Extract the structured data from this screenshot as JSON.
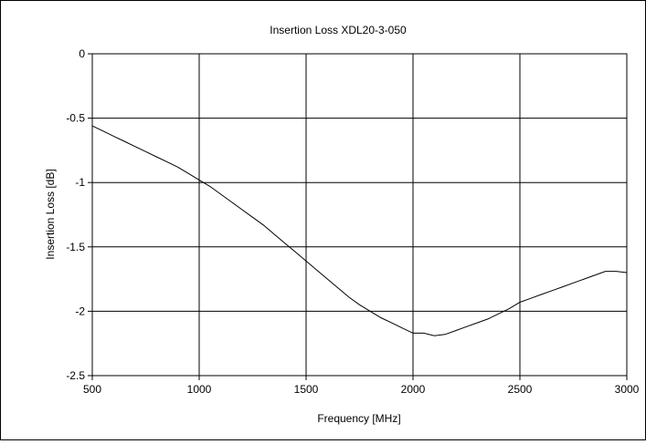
{
  "chart_data": {
    "type": "line",
    "title": "Insertion Loss XDL20-3-050",
    "xlabel": "Frequency [MHz]",
    "ylabel": "Insertion Loss [dB]",
    "xlim": [
      500,
      3000
    ],
    "ylim": [
      -2.5,
      0
    ],
    "xticks": [
      500,
      1000,
      1500,
      2000,
      2500,
      3000
    ],
    "yticks": [
      0,
      -0.5,
      -1,
      -1.5,
      -2,
      -2.5
    ],
    "xtick_labels": [
      "500",
      "1000",
      "1500",
      "2000",
      "2500",
      "3000"
    ],
    "ytick_labels": [
      "0",
      "-0.5",
      "-1",
      "-1.5",
      "-2",
      "-2.5"
    ],
    "grid": true,
    "legend": "none",
    "series": [
      {
        "color": "#000000",
        "x": [
          500,
          550,
          600,
          650,
          700,
          750,
          800,
          850,
          900,
          950,
          1000,
          1050,
          1100,
          1150,
          1200,
          1250,
          1300,
          1350,
          1400,
          1450,
          1500,
          1550,
          1600,
          1650,
          1700,
          1750,
          1800,
          1850,
          1900,
          1950,
          2000,
          2050,
          2100,
          2150,
          2200,
          2250,
          2300,
          2350,
          2400,
          2450,
          2500,
          2550,
          2600,
          2650,
          2700,
          2750,
          2800,
          2850,
          2900,
          2950,
          3000
        ],
        "y": [
          -0.56,
          -0.6,
          -0.64,
          -0.68,
          -0.72,
          -0.76,
          -0.8,
          -0.84,
          -0.88,
          -0.93,
          -0.98,
          -1.03,
          -1.09,
          -1.15,
          -1.21,
          -1.27,
          -1.33,
          -1.4,
          -1.47,
          -1.54,
          -1.61,
          -1.68,
          -1.75,
          -1.82,
          -1.89,
          -1.95,
          -2.0,
          -2.05,
          -2.09,
          -2.13,
          -2.17,
          -2.17,
          -2.19,
          -2.18,
          -2.15,
          -2.12,
          -2.09,
          -2.06,
          -2.02,
          -1.98,
          -1.93,
          -1.9,
          -1.87,
          -1.84,
          -1.81,
          -1.78,
          -1.75,
          -1.72,
          -1.69,
          -1.69,
          -1.7
        ]
      }
    ]
  }
}
